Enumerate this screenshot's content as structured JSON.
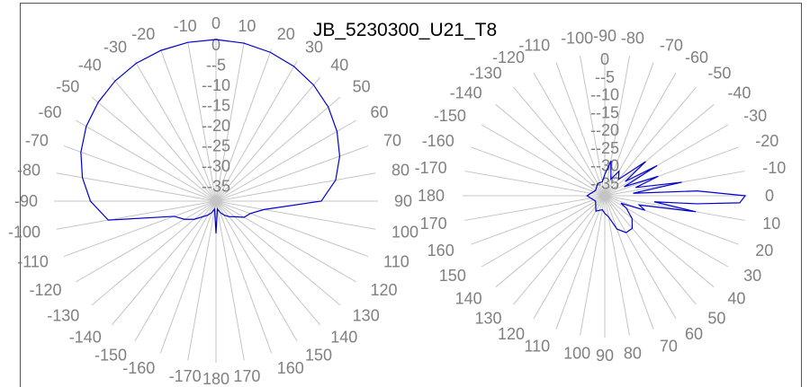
{
  "title": "JB_5230300_U21_T8",
  "chart_data": [
    {
      "type": "polar-line",
      "title": "JB_5230300_U21_T8",
      "angle_unit": "degrees",
      "angle_ticks": [
        0,
        10,
        20,
        30,
        40,
        50,
        60,
        70,
        80,
        90,
        100,
        110,
        120,
        130,
        140,
        150,
        160,
        170,
        180,
        -170,
        -160,
        -150,
        -140,
        -130,
        -120,
        -110,
        -100,
        -90,
        -80,
        -70,
        -60,
        -50,
        -40,
        -30,
        -20,
        -10
      ],
      "angle_tick_labels": [
        "0",
        "10",
        "20",
        "30",
        "40",
        "50",
        "60",
        "70",
        "80",
        "90",
        "100",
        "110",
        "120",
        "130",
        "140",
        "150",
        "160",
        "170",
        "180",
        "170",
        "160",
        "150",
        "140",
        "130",
        "120",
        "110",
        "100",
        "90",
        "80",
        "70",
        "60",
        "50",
        "40",
        "30",
        "20",
        "10"
      ],
      "angle_tick_prefixes": [
        "",
        "",
        "",
        "",
        "",
        "",
        "",
        "",
        "",
        "",
        "",
        "",
        "",
        "",
        "",
        "",
        "",
        "",
        "",
        "-",
        "-",
        "-",
        "-",
        "-",
        "-",
        "-",
        "-",
        "-",
        "-",
        "-",
        "-",
        "-",
        "-",
        "-",
        "-",
        "-"
      ],
      "radial_ticks": [
        0,
        -5,
        -10,
        -15,
        -20,
        -25,
        -30,
        -35
      ],
      "radial_tick_labels": [
        "0",
        "-5",
        "-10",
        "-15",
        "-20",
        "-25",
        "-30",
        "-35"
      ],
      "radial_tick_prefixes": [
        "",
        "-",
        "-",
        "-",
        "-",
        "-",
        "-",
        "-"
      ],
      "rlim": [
        -40,
        0
      ],
      "zero_direction": "top",
      "rotation": "clockwise",
      "series": [
        {
          "color": "#0000cc",
          "angle": [
            0,
            10,
            20,
            30,
            40,
            50,
            60,
            70,
            80,
            90,
            100,
            110,
            120,
            130,
            140,
            150,
            160,
            170,
            180,
            -170,
            -160,
            -150,
            -140,
            -130,
            -120,
            -110,
            -100,
            -90,
            -80,
            -70,
            -60,
            -50,
            -40,
            -30,
            -20,
            -10
          ],
          "gain_db": [
            0,
            -0.3,
            -0.8,
            -1.5,
            -2.5,
            -3.8,
            -5.5,
            -7.5,
            -10,
            -14,
            -28,
            -31,
            -32,
            -34,
            -35,
            -36,
            -37,
            -38,
            -32,
            -38,
            -37,
            -36,
            -35,
            -33,
            -31,
            -29,
            -13,
            -9,
            -6.5,
            -4.5,
            -3,
            -2,
            -1.2,
            -0.6,
            -0.3,
            -0.1
          ]
        }
      ]
    },
    {
      "type": "polar-line",
      "angle_unit": "degrees",
      "angle_ticks": [
        0,
        10,
        20,
        30,
        40,
        50,
        60,
        70,
        80,
        90,
        100,
        110,
        120,
        130,
        140,
        150,
        160,
        170,
        180,
        -170,
        -160,
        -150,
        -140,
        -130,
        -120,
        -110,
        -100,
        -90,
        -80,
        -70,
        -60,
        -50,
        -40,
        -30,
        -20,
        -10
      ],
      "angle_tick_labels": [
        "0",
        "10",
        "20",
        "30",
        "40",
        "50",
        "60",
        "70",
        "80",
        "90",
        "100",
        "110",
        "120",
        "130",
        "140",
        "150",
        "160",
        "170",
        "180",
        "170",
        "160",
        "150",
        "140",
        "130",
        "120",
        "110",
        "100",
        "90",
        "80",
        "70",
        "60",
        "50",
        "40",
        "30",
        "20",
        "10"
      ],
      "angle_tick_prefixes": [
        "",
        "",
        "",
        "",
        "",
        "",
        "",
        "",
        "",
        "",
        "",
        "",
        "",
        "",
        "",
        "",
        "",
        "",
        "",
        "-",
        "-",
        "-",
        "-",
        "-",
        "-",
        "-",
        "-",
        "-",
        "-",
        "-",
        "-",
        "-",
        "-",
        "-",
        "-",
        "-"
      ],
      "radial_ticks": [
        0,
        -5,
        -10,
        -15,
        -20,
        -25,
        -30,
        -35
      ],
      "radial_tick_labels": [
        "0",
        "-5",
        "-10",
        "-15",
        "-20",
        "-25",
        "-30",
        "-35"
      ],
      "radial_tick_prefixes": [
        "",
        "-",
        "-",
        "-",
        "-",
        "-",
        "-",
        "-"
      ],
      "rlim": [
        -40,
        0
      ],
      "zero_direction": "right",
      "rotation": "clockwise",
      "series": [
        {
          "color": "#0000cc",
          "angle": [
            -40,
            -35,
            -30,
            -25,
            -20,
            -15,
            -10,
            -5,
            -3,
            0,
            3,
            5,
            7,
            10,
            15,
            20,
            25,
            30,
            40,
            50,
            60,
            70,
            80,
            90,
            100,
            120,
            150,
            180,
            -150,
            -120,
            -100,
            -90,
            -80,
            -70,
            -60,
            -50
          ],
          "gain_db": [
            -25,
            -33,
            -23,
            -34,
            -24,
            -31,
            -18,
            -32,
            -14,
            -0.5,
            -2,
            -14,
            -26,
            -14,
            -30,
            -28,
            -35,
            -33,
            -30,
            -28,
            -28,
            -30,
            -34,
            -35,
            -36,
            -35,
            -37,
            -35,
            -37,
            -36,
            -36,
            -34,
            -30,
            -35,
            -32,
            -34
          ]
        }
      ]
    }
  ]
}
